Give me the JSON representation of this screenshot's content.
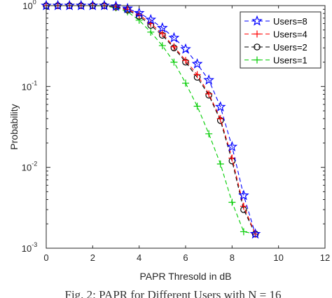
{
  "chart_data": {
    "type": "line",
    "title": "",
    "xlabel": "PAPR Thresold in dB",
    "ylabel": "Probability",
    "xlim": [
      0,
      12
    ],
    "ylim": [
      0.001,
      1
    ],
    "yscale": "log",
    "xticks": [
      0,
      2,
      4,
      6,
      8,
      10,
      12
    ],
    "yticks": [
      {
        "value": 0.001,
        "base": "10",
        "exp": "-3"
      },
      {
        "value": 0.01,
        "base": "10",
        "exp": "-2"
      },
      {
        "value": 0.1,
        "base": "10",
        "exp": "-1"
      },
      {
        "value": 1,
        "base": "10",
        "exp": "0"
      }
    ],
    "grid": false,
    "legend_position": "top-right",
    "x": [
      0,
      0.5,
      1,
      1.5,
      2,
      2.5,
      3,
      3.5,
      4,
      4.5,
      5,
      5.5,
      6,
      6.5,
      7,
      7.5,
      8,
      8.5,
      9
    ],
    "series": [
      {
        "name": "Users=8",
        "color": "#0000ff",
        "marker": "star",
        "values": [
          1,
          1,
          1,
          1,
          1,
          1,
          0.98,
          0.92,
          0.81,
          0.67,
          0.53,
          0.4,
          0.29,
          0.19,
          0.12,
          0.056,
          0.018,
          0.0045,
          0.0015
        ]
      },
      {
        "name": "Users=4",
        "color": "#ff0000",
        "marker": "plus",
        "values": [
          1,
          1,
          1,
          1,
          1,
          1,
          0.97,
          0.9,
          0.77,
          0.6,
          0.45,
          0.31,
          0.21,
          0.14,
          0.081,
          0.04,
          0.013,
          0.0033,
          0.0015
        ]
      },
      {
        "name": "Users=2",
        "color": "#000000",
        "marker": "circle",
        "values": [
          1,
          1,
          1,
          1,
          1,
          1,
          0.96,
          0.88,
          0.74,
          0.57,
          0.43,
          0.3,
          0.2,
          0.13,
          0.078,
          0.038,
          0.012,
          0.003,
          0.0015
        ]
      },
      {
        "name": "Users=1",
        "color": "#00cc00",
        "marker": "plus",
        "values": [
          1,
          1,
          1,
          1,
          1,
          0.99,
          0.94,
          0.84,
          0.66,
          0.47,
          0.32,
          0.2,
          0.11,
          0.057,
          0.026,
          0.011,
          0.0037,
          0.0016,
          0.0015
        ]
      }
    ]
  },
  "caption": "Fig. 2: PAPR for Different Users with N = 16"
}
